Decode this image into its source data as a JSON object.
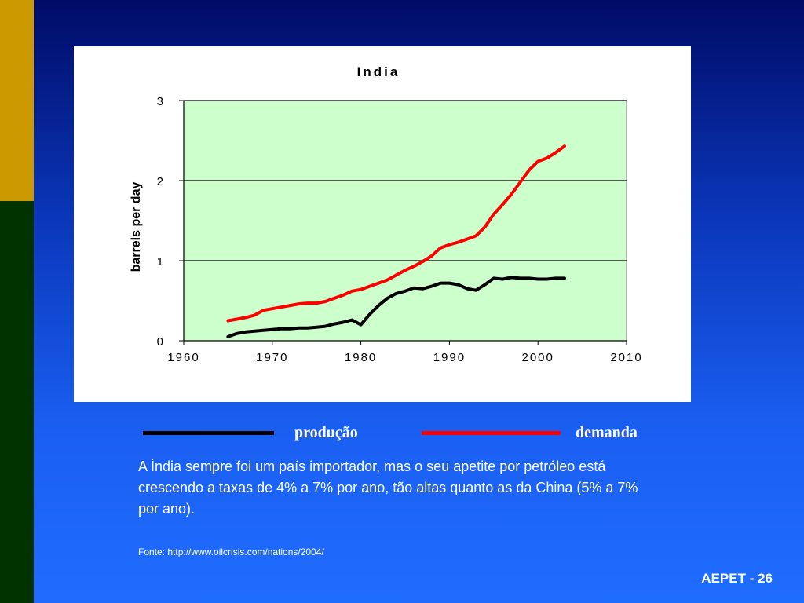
{
  "chart_data": {
    "type": "line",
    "title": "India",
    "xlabel": "",
    "ylabel": "barrels per day",
    "xlim": [
      1960,
      2010
    ],
    "ylim": [
      0,
      3
    ],
    "x_ticks": [
      "1960",
      "1970",
      "1980",
      "1990",
      "2000",
      "2010"
    ],
    "y_ticks": [
      "0",
      "1",
      "2",
      "3"
    ],
    "grid": "horizontal",
    "plot_background": "#ccffcc",
    "series": [
      {
        "name": "demanda",
        "color": "#ff0000",
        "points": [
          [
            1965,
            0.25
          ],
          [
            1966,
            0.27
          ],
          [
            1967,
            0.29
          ],
          [
            1968,
            0.32
          ],
          [
            1969,
            0.38
          ],
          [
            1970,
            0.4
          ],
          [
            1971,
            0.42
          ],
          [
            1972,
            0.44
          ],
          [
            1973,
            0.46
          ],
          [
            1974,
            0.47
          ],
          [
            1975,
            0.47
          ],
          [
            1976,
            0.49
          ],
          [
            1977,
            0.53
          ],
          [
            1978,
            0.57
          ],
          [
            1979,
            0.62
          ],
          [
            1980,
            0.64
          ],
          [
            1981,
            0.68
          ],
          [
            1982,
            0.72
          ],
          [
            1983,
            0.76
          ],
          [
            1984,
            0.82
          ],
          [
            1985,
            0.88
          ],
          [
            1986,
            0.93
          ],
          [
            1987,
            0.99
          ],
          [
            1988,
            1.06
          ],
          [
            1989,
            1.16
          ],
          [
            1990,
            1.2
          ],
          [
            1991,
            1.23
          ],
          [
            1992,
            1.27
          ],
          [
            1993,
            1.31
          ],
          [
            1994,
            1.42
          ],
          [
            1995,
            1.58
          ],
          [
            1996,
            1.7
          ],
          [
            1997,
            1.83
          ],
          [
            1998,
            1.98
          ],
          [
            1999,
            2.13
          ],
          [
            2000,
            2.24
          ],
          [
            2001,
            2.28
          ],
          [
            2002,
            2.35
          ],
          [
            2003,
            2.43
          ]
        ]
      },
      {
        "name": "produção",
        "color": "#000000",
        "points": [
          [
            1965,
            0.05
          ],
          [
            1966,
            0.09
          ],
          [
            1967,
            0.11
          ],
          [
            1968,
            0.12
          ],
          [
            1969,
            0.13
          ],
          [
            1970,
            0.14
          ],
          [
            1971,
            0.15
          ],
          [
            1972,
            0.15
          ],
          [
            1973,
            0.16
          ],
          [
            1974,
            0.16
          ],
          [
            1975,
            0.17
          ],
          [
            1976,
            0.18
          ],
          [
            1977,
            0.21
          ],
          [
            1978,
            0.23
          ],
          [
            1979,
            0.26
          ],
          [
            1980,
            0.2
          ],
          [
            1981,
            0.33
          ],
          [
            1982,
            0.44
          ],
          [
            1983,
            0.53
          ],
          [
            1984,
            0.59
          ],
          [
            1985,
            0.62
          ],
          [
            1986,
            0.66
          ],
          [
            1987,
            0.65
          ],
          [
            1988,
            0.68
          ],
          [
            1989,
            0.72
          ],
          [
            1990,
            0.72
          ],
          [
            1991,
            0.7
          ],
          [
            1992,
            0.65
          ],
          [
            1993,
            0.63
          ],
          [
            1994,
            0.7
          ],
          [
            1995,
            0.78
          ],
          [
            1996,
            0.77
          ],
          [
            1997,
            0.79
          ],
          [
            1998,
            0.78
          ],
          [
            1999,
            0.78
          ],
          [
            2000,
            0.77
          ],
          [
            2001,
            0.77
          ],
          [
            2002,
            0.78
          ],
          [
            2003,
            0.78
          ]
        ]
      }
    ]
  },
  "legend": {
    "production_label": "produção",
    "demand_label": "demanda",
    "production_color": "#000000",
    "demand_color": "#ff0000"
  },
  "caption": "A Índia sempre foi um país importador, mas o seu apetite por petróleo está crescendo a taxas de 4% a 7% por ano, tão altas quanto as da China (5% a 7% por ano).",
  "source": "Fonte: http://www.oilcrisis.com/nations/2004/",
  "slide_number": "AEPET - 26"
}
